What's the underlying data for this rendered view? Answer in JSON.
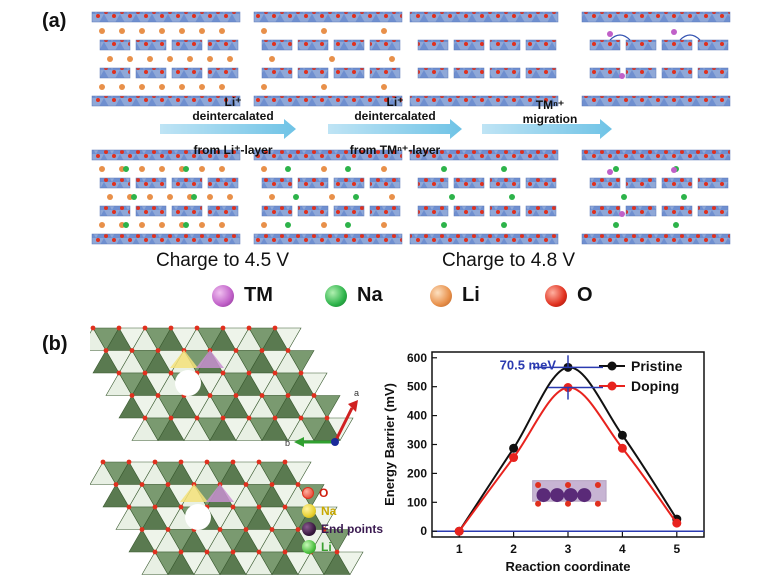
{
  "panel_a": {
    "label": "(a)",
    "steps": [
      {
        "line1": "Li⁺",
        "line2": "deintercalated",
        "line3": "from Li⁺-layer"
      },
      {
        "line1": "Li⁺",
        "line2": "deintercalated",
        "line3": "from TMⁿ⁺-layer"
      },
      {
        "line1": "TMⁿ⁺",
        "line2": "migration",
        "line3": ""
      }
    ],
    "charge_labels": [
      "Charge to 4.5 V",
      "Charge to 4.8 V"
    ],
    "legend": [
      {
        "label": "TM",
        "color": "#c060c8"
      },
      {
        "label": "Na",
        "color": "#2db34a"
      },
      {
        "label": "Li",
        "color": "#e8904a"
      },
      {
        "label": "O",
        "color": "#e0301e"
      }
    ]
  },
  "panel_b": {
    "label": "(b)",
    "axis_labels": {
      "a": "a",
      "b": "b"
    },
    "structure_legend": [
      {
        "label": "O",
        "color": "#e0301e"
      },
      {
        "label": "Na",
        "color": "#e8d030"
      },
      {
        "label": "End points",
        "color": "#3a1a40"
      },
      {
        "label": "Li",
        "color": "#4cc040"
      }
    ],
    "annotation": "70.5 meV"
  },
  "chart_data": {
    "type": "line",
    "xlabel": "Reaction coordinate",
    "ylabel": "Energy Barrier (mV)",
    "x": [
      1,
      2,
      3,
      4,
      5
    ],
    "xlim": [
      0.5,
      5.5
    ],
    "ylim": [
      -20,
      620
    ],
    "xticks": [
      "1",
      "2",
      "3",
      "4",
      "5"
    ],
    "yticks": [
      "0",
      "100",
      "200",
      "300",
      "400",
      "500",
      "600"
    ],
    "legend_position": "top-right",
    "series": [
      {
        "name": "Pristine",
        "color": "#111111",
        "values": [
          0,
          287,
          567,
          332,
          42
        ]
      },
      {
        "name": "Doping",
        "color": "#e8231e",
        "values": [
          0,
          255,
          497,
          287,
          28
        ]
      }
    ]
  }
}
